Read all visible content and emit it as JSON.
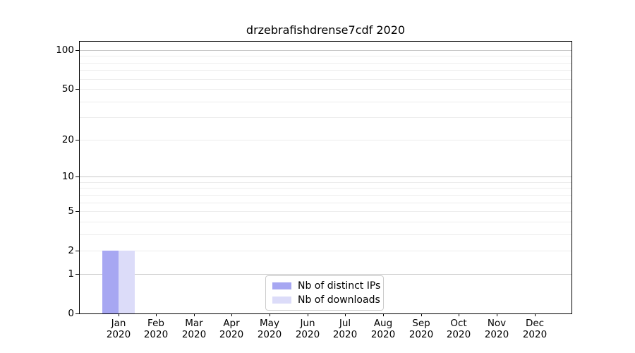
{
  "page": {
    "background": "#ffffff"
  },
  "chart_data": {
    "type": "bar",
    "title": "drzebrafishdrense7cdf 2020",
    "categories": [
      "Jan",
      "Feb",
      "Mar",
      "Apr",
      "May",
      "Jun",
      "Jul",
      "Aug",
      "Sep",
      "Oct",
      "Nov",
      "Dec"
    ],
    "category_year": "2020",
    "series": [
      {
        "name": "Nb of distinct IPs",
        "color": "#a7a7f2",
        "values": [
          2,
          0,
          0,
          0,
          0,
          0,
          0,
          0,
          0,
          0,
          0,
          0
        ]
      },
      {
        "name": "Nb of downloads",
        "color": "#dcdcf9",
        "values": [
          2,
          0,
          0,
          0,
          0,
          0,
          0,
          0,
          0,
          0,
          0,
          0
        ]
      }
    ],
    "xlabel": "",
    "ylabel": "",
    "yscale": "log1p",
    "ylim": [
      0,
      116
    ],
    "yticks": [
      0,
      1,
      2,
      5,
      10,
      20,
      50,
      100
    ],
    "grid": "on",
    "grid_major_values": [
      1,
      10,
      100
    ],
    "grid_minor_values": [
      2,
      3,
      4,
      5,
      6,
      7,
      8,
      9,
      20,
      30,
      40,
      50,
      60,
      70,
      80,
      90
    ],
    "legend": {
      "position": "lower center",
      "entries": [
        "Nb of distinct IPs",
        "Nb of downloads"
      ]
    },
    "styles": {
      "grid_major_color": "#c8c8c8",
      "grid_minor_color": "#ededed",
      "axis_color": "#000000",
      "text_color": "#000000",
      "background": "#ffffff"
    }
  }
}
